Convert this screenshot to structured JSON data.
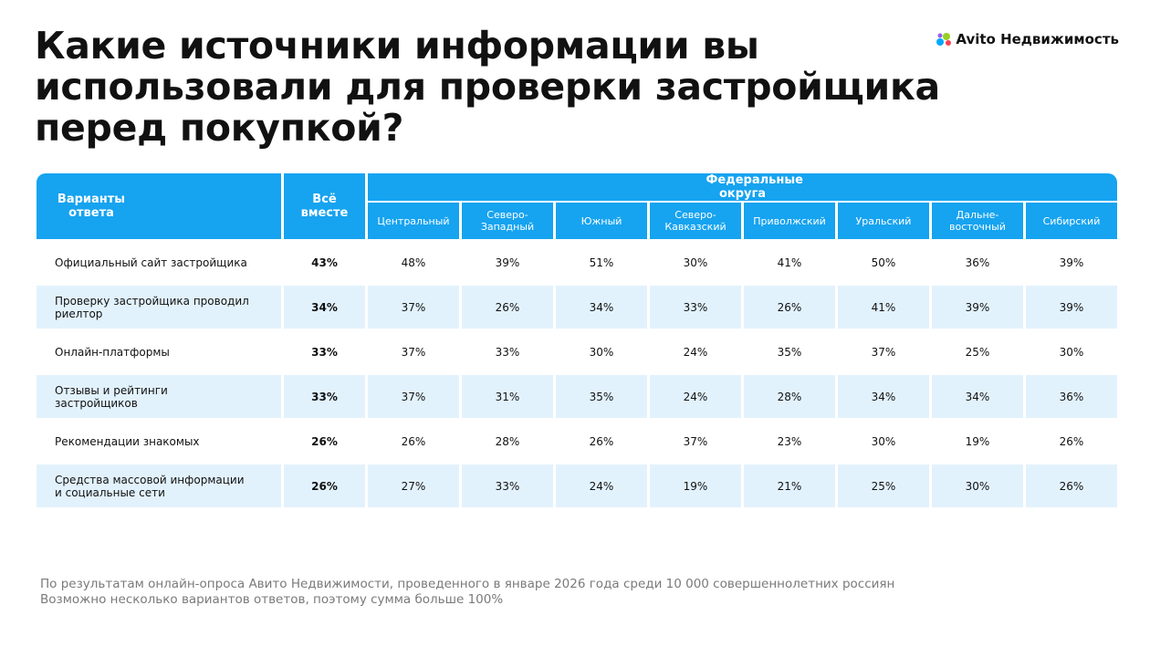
{
  "header": {
    "title_lines": [
      "Какие источники информации вы",
      "использовали для проверки застройщика",
      "перед покупкой?"
    ],
    "logo": "Avito Недвижимость"
  },
  "table": {
    "columns": {
      "answer": "Варианты ответа",
      "total": "Всё вместе",
      "group": "Федеральные округа",
      "districts": [
        "Центральный",
        "Северо-Западный",
        "Южный",
        "Северо-Кавказский",
        "Приволжский",
        "Уральский",
        "Дальне-восточный",
        "Сибирский"
      ]
    },
    "rows": [
      [
        "Официальный сайт застройщика",
        "43%",
        "48%",
        "39%",
        "51%",
        "30%",
        "41%",
        "50%",
        "36%",
        "39%"
      ],
      [
        "Проверку застройщика проводил риелтор",
        "34%",
        "37%",
        "26%",
        "34%",
        "33%",
        "26%",
        "41%",
        "39%",
        "39%"
      ],
      [
        "Онлайн-платформы",
        "33%",
        "37%",
        "33%",
        "30%",
        "24%",
        "35%",
        "37%",
        "25%",
        "30%"
      ],
      [
        "Отзывы и рейтинги застройщиков",
        "33%",
        "37%",
        "31%",
        "35%",
        "24%",
        "28%",
        "34%",
        "34%",
        "36%"
      ],
      [
        "Рекомендации знакомых",
        "26%",
        "26%",
        "28%",
        "26%",
        "37%",
        "23%",
        "30%",
        "19%",
        "26%"
      ],
      [
        "Средства массовой информации и социальные сети",
        "26%",
        "27%",
        "33%",
        "24%",
        "19%",
        "21%",
        "25%",
        "30%",
        "26%"
      ]
    ]
  },
  "footnotes": [
    "По результатам онлайн-опроса Авито Недвижимости, проведенного в январе 2026 года среди 10 000 совершеннолетних россиян",
    "Возможно несколько вариантов ответов, поэтому сумма больше 100%"
  ]
}
